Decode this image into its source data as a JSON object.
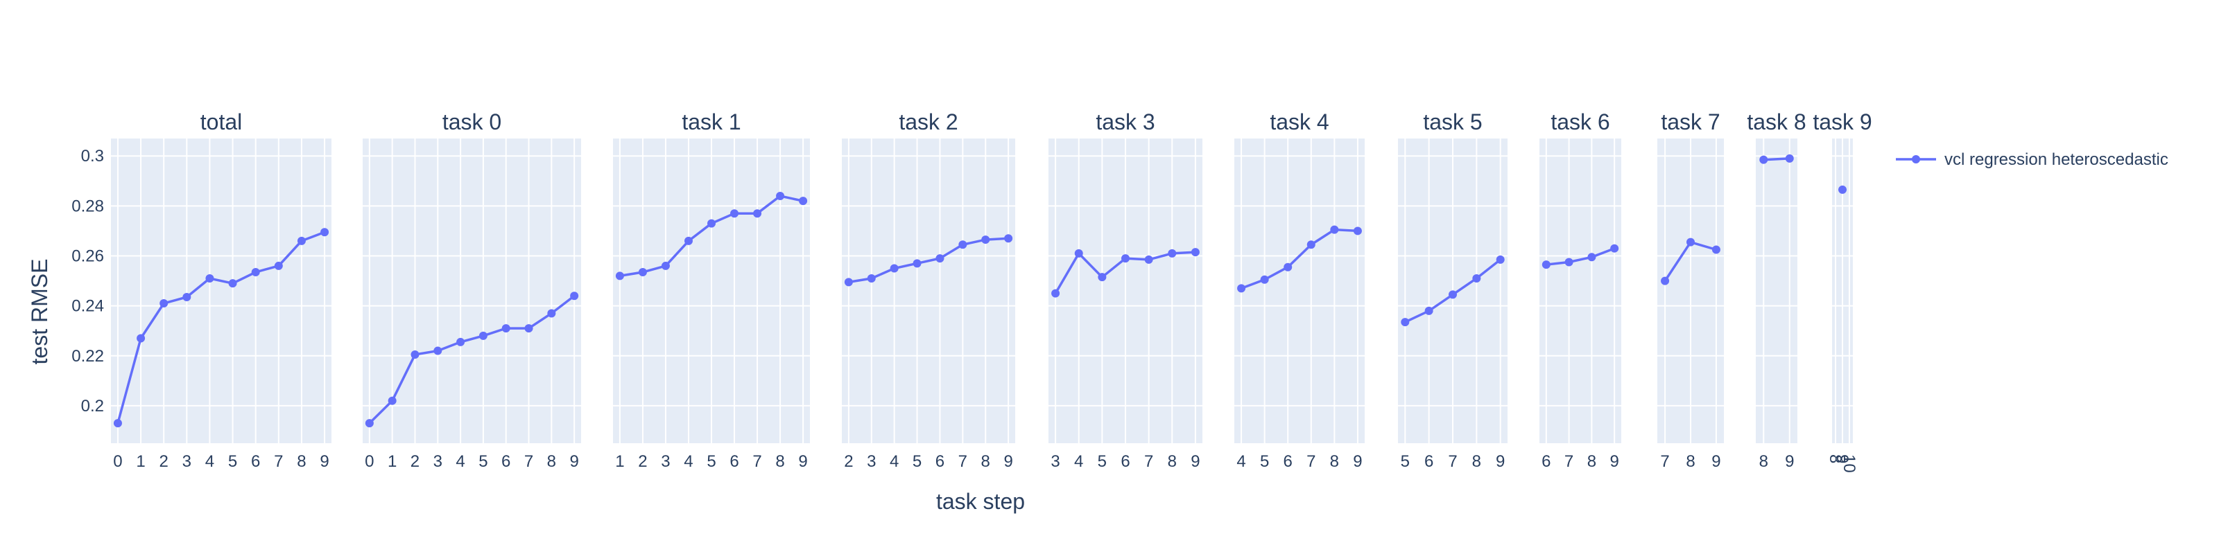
{
  "colors": {
    "series": "#636efa",
    "plot_bg": "#e5ecf6",
    "grid": "#ffffff",
    "text": "#2a3f5f"
  },
  "chart_data": {
    "type": "line",
    "xlabel": "task step",
    "ylabel": "test RMSE",
    "ylim": [
      0.185,
      0.307
    ],
    "y_ticks": [
      0.2,
      0.22,
      0.24,
      0.26,
      0.28,
      0.3
    ],
    "y_tick_labels": [
      "0.2",
      "0.22",
      "0.24",
      "0.26",
      "0.28",
      "0.3"
    ],
    "grid": true,
    "legend": {
      "placement": "top-right",
      "entries": [
        "vcl regression heteroscedastic"
      ]
    },
    "series_name": "vcl regression heteroscedastic",
    "panels": [
      {
        "title": "total",
        "x": [
          0,
          1,
          2,
          3,
          4,
          5,
          6,
          7,
          8,
          9
        ],
        "y": [
          0.193,
          0.227,
          0.241,
          0.2435,
          0.251,
          0.249,
          0.2535,
          0.256,
          0.266,
          0.2695
        ]
      },
      {
        "title": "task 0",
        "x": [
          0,
          1,
          2,
          3,
          4,
          5,
          6,
          7,
          8,
          9
        ],
        "y": [
          0.193,
          0.202,
          0.2205,
          0.222,
          0.2255,
          0.228,
          0.231,
          0.231,
          0.237,
          0.244
        ]
      },
      {
        "title": "task 1",
        "x": [
          1,
          2,
          3,
          4,
          5,
          6,
          7,
          8,
          9
        ],
        "y": [
          0.252,
          0.2535,
          0.256,
          0.266,
          0.273,
          0.277,
          0.277,
          0.284,
          0.282
        ]
      },
      {
        "title": "task 2",
        "x": [
          2,
          3,
          4,
          5,
          6,
          7,
          8,
          9
        ],
        "y": [
          0.2495,
          0.251,
          0.255,
          0.257,
          0.259,
          0.2645,
          0.2665,
          0.267
        ]
      },
      {
        "title": "task 3",
        "x": [
          3,
          4,
          5,
          6,
          7,
          8,
          9
        ],
        "y": [
          0.245,
          0.261,
          0.2515,
          0.259,
          0.2585,
          0.261,
          0.2615
        ]
      },
      {
        "title": "task 4",
        "x": [
          4,
          5,
          6,
          7,
          8,
          9
        ],
        "y": [
          0.247,
          0.2505,
          0.2555,
          0.2645,
          0.2705,
          0.27
        ]
      },
      {
        "title": "task 5",
        "x": [
          5,
          6,
          7,
          8,
          9
        ],
        "y": [
          0.2335,
          0.238,
          0.2445,
          0.251,
          0.2585
        ]
      },
      {
        "title": "task 6",
        "x": [
          6,
          7,
          8,
          9
        ],
        "y": [
          0.2565,
          0.2575,
          0.2595,
          0.263
        ]
      },
      {
        "title": "task 7",
        "x": [
          7,
          8,
          9
        ],
        "y": [
          0.25,
          0.2655,
          0.2625
        ]
      },
      {
        "title": "task 8",
        "x": [
          8,
          9
        ],
        "y": [
          0.2985,
          0.299
        ]
      },
      {
        "title": "task 9",
        "x": [
          9
        ],
        "y": [
          0.2865
        ]
      }
    ],
    "panel_x_ticks": [
      [
        "0",
        "1",
        "2",
        "3",
        "4",
        "5",
        "6",
        "7",
        "8",
        "9"
      ],
      [
        "0",
        "1",
        "2",
        "3",
        "4",
        "5",
        "6",
        "7",
        "8",
        "9"
      ],
      [
        "1",
        "2",
        "3",
        "4",
        "5",
        "6",
        "7",
        "8",
        "9"
      ],
      [
        "2",
        "3",
        "4",
        "5",
        "6",
        "7",
        "8",
        "9"
      ],
      [
        "3",
        "4",
        "5",
        "6",
        "7",
        "8",
        "9"
      ],
      [
        "4",
        "5",
        "6",
        "7",
        "8",
        "9"
      ],
      [
        "5",
        "6",
        "7",
        "8",
        "9"
      ],
      [
        "6",
        "7",
        "8",
        "9"
      ],
      [
        "7",
        "8",
        "9"
      ],
      [
        "8",
        "9"
      ],
      [
        "8",
        "9",
        "10"
      ]
    ]
  }
}
